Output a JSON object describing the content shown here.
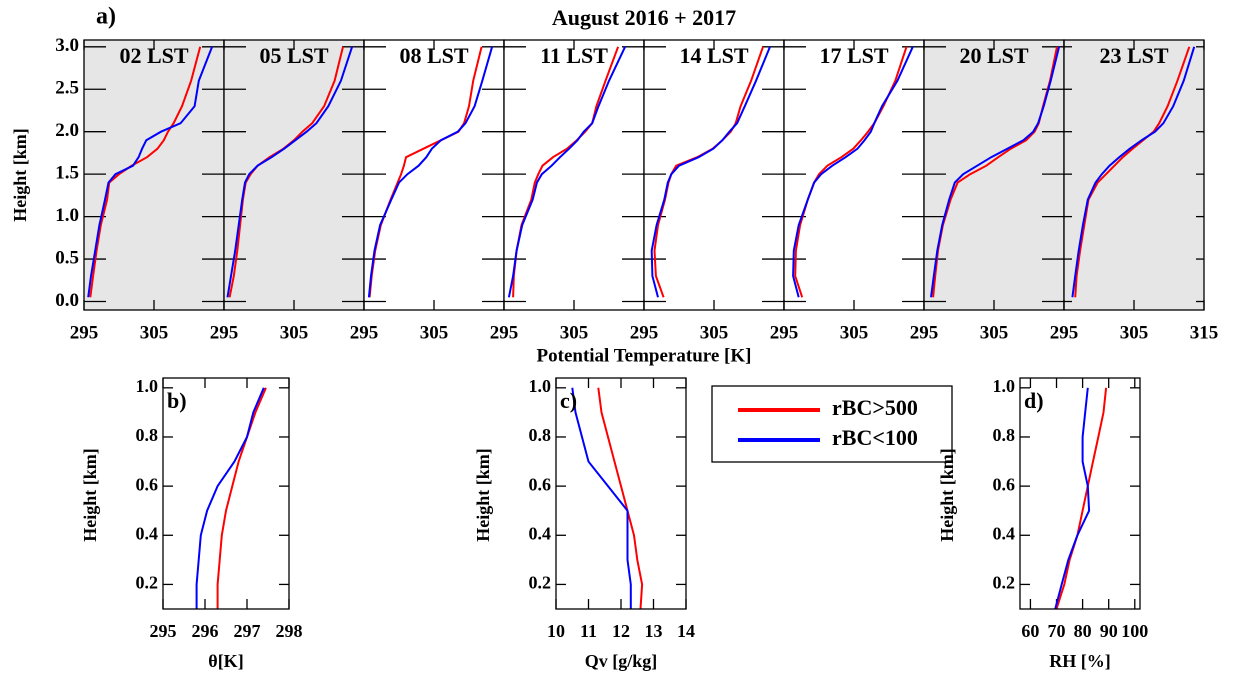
{
  "legend": [
    {
      "name": "rBC>500",
      "color": "#ff0000"
    },
    {
      "name": "rBC<100",
      "color": "#0000ff"
    }
  ],
  "chart_data": [
    {
      "type": "line",
      "label": "a)",
      "title": "August 2016 + 2017",
      "xlabel": "Potential Temperature [K]",
      "ylabel": "Height [km]",
      "ylim": [
        -0.1,
        3.08
      ],
      "yticks": [
        {
          "value": 0,
          "label": "0.0"
        },
        0.5,
        {
          "value": 1,
          "label": "1.0"
        },
        1.5,
        {
          "value": 2,
          "label": "2.0"
        },
        2.5,
        {
          "value": 3,
          "label": "3.0"
        }
      ],
      "heights": [
        0.05,
        0.3,
        0.6,
        0.9,
        1.2,
        1.4,
        1.5,
        1.6,
        1.7,
        1.8,
        1.9,
        2.0,
        2.1,
        2.3,
        2.6,
        3.0
      ],
      "panels": [
        {
          "title": "02 LST",
          "shaded": true,
          "xlim": [
            295,
            315
          ],
          "xticks": [
            295,
            305
          ],
          "series": [
            {
              "values": [
                295.9,
                296.3,
                296.8,
                297.4,
                298.3,
                298.6,
                300.0,
                301.8,
                304.0,
                305.5,
                306.4,
                307.0,
                307.8,
                309.0,
                310.3,
                311.6
              ]
            },
            {
              "values": [
                295.6,
                296.0,
                296.6,
                297.2,
                298.0,
                298.5,
                299.5,
                302.0,
                302.8,
                303.3,
                303.9,
                306.0,
                308.8,
                310.8,
                311.4,
                313.3
              ]
            }
          ]
        },
        {
          "title": "05 LST",
          "shaded": true,
          "xlim": [
            295,
            315
          ],
          "xticks": [
            295,
            305
          ],
          "series": [
            {
              "values": [
                295.8,
                296.4,
                296.9,
                297.3,
                297.7,
                298.1,
                298.8,
                299.8,
                301.5,
                303.5,
                305.0,
                306.2,
                307.6,
                309.3,
                310.8,
                312.0
              ]
            },
            {
              "values": [
                295.5,
                296.0,
                296.6,
                297.1,
                297.6,
                298.0,
                298.6,
                299.8,
                301.8,
                303.6,
                305.2,
                306.8,
                308.2,
                309.9,
                311.7,
                313.3
              ]
            }
          ]
        },
        {
          "title": "08 LST",
          "shaded": false,
          "xlim": [
            295,
            315
          ],
          "xticks": [
            295,
            305
          ],
          "series": [
            {
              "values": [
                295.8,
                296.1,
                296.6,
                297.4,
                298.8,
                299.8,
                300.3,
                300.7,
                301.0,
                303.5,
                306.0,
                308.5,
                309.3,
                310.0,
                310.6,
                311.8
              ]
            },
            {
              "values": [
                295.7,
                296.0,
                296.5,
                297.3,
                298.9,
                300.0,
                301.2,
                302.8,
                303.9,
                304.7,
                306.0,
                308.4,
                309.5,
                310.8,
                311.9,
                313.3
              ]
            }
          ]
        },
        {
          "title": "11 LST",
          "shaded": false,
          "xlim": [
            295,
            315
          ],
          "xticks": [
            295,
            305
          ],
          "series": [
            {
              "values": [
                296.3,
                296.4,
                296.8,
                297.5,
                298.9,
                299.4,
                299.9,
                300.5,
                302.0,
                304.0,
                305.4,
                306.6,
                307.6,
                308.2,
                309.5,
                311.3
              ]
            },
            {
              "values": [
                295.7,
                296.3,
                296.8,
                297.6,
                299.1,
                299.7,
                300.4,
                301.8,
                303.0,
                304.3,
                305.5,
                306.4,
                307.6,
                308.5,
                310.0,
                312.3
              ]
            }
          ]
        },
        {
          "title": "14 LST",
          "shaded": false,
          "xlim": [
            295,
            315
          ],
          "xticks": [
            295,
            305
          ],
          "series": [
            {
              "values": [
                297.8,
                296.7,
                296.5,
                297.0,
                298.0,
                298.5,
                298.9,
                299.6,
                302.6,
                304.8,
                306.2,
                307.4,
                308.1,
                308.8,
                310.3,
                312.0
              ]
            },
            {
              "values": [
                297.0,
                296.2,
                296.1,
                296.8,
                297.9,
                298.4,
                298.9,
                300.0,
                302.8,
                304.9,
                306.2,
                307.2,
                308.3,
                309.4,
                311.0,
                313.0
              ]
            }
          ]
        },
        {
          "title": "17 LST",
          "shaded": false,
          "xlim": [
            295,
            315
          ],
          "xticks": [
            295,
            305
          ],
          "series": [
            {
              "values": [
                297.6,
                296.6,
                296.7,
                297.3,
                298.4,
                299.3,
                300.0,
                301.2,
                303.2,
                304.9,
                306.0,
                307.0,
                307.9,
                309.2,
                310.9,
                312.5
              ]
            },
            {
              "values": [
                297.1,
                296.3,
                296.4,
                297.1,
                298.4,
                299.3,
                300.3,
                301.9,
                303.8,
                305.5,
                306.5,
                307.4,
                307.9,
                309.0,
                311.2,
                313.4
              ]
            }
          ]
        },
        {
          "title": "20 LST",
          "shaded": true,
          "xlim": [
            295,
            315
          ],
          "xticks": [
            295,
            305
          ],
          "series": [
            {
              "values": [
                296.3,
                296.6,
                297.0,
                297.7,
                298.8,
                299.8,
                301.6,
                303.9,
                305.6,
                307.4,
                309.6,
                310.8,
                311.4,
                312.0,
                313.0,
                314.0
              ]
            },
            {
              "values": [
                296.0,
                296.4,
                296.9,
                297.6,
                298.6,
                299.4,
                300.6,
                302.6,
                304.6,
                306.9,
                309.2,
                310.6,
                311.3,
                312.1,
                313.1,
                314.3
              ]
            }
          ]
        },
        {
          "title": "23 LST",
          "shaded": true,
          "xlim": [
            295,
            315
          ],
          "xticks": [
            295,
            305,
            315
          ],
          "series": [
            {
              "values": [
                296.6,
                296.8,
                297.3,
                297.9,
                298.5,
                299.8,
                301.0,
                302.2,
                303.4,
                304.8,
                306.3,
                307.8,
                308.6,
                309.8,
                311.2,
                312.9
              ]
            },
            {
              "values": [
                296.2,
                296.6,
                297.1,
                297.7,
                298.4,
                299.5,
                300.4,
                301.5,
                302.9,
                304.4,
                306.1,
                308.0,
                309.2,
                310.6,
                312.1,
                313.6
              ]
            }
          ]
        }
      ]
    },
    {
      "type": "line",
      "label": "b)",
      "xlabel": "θ[K]",
      "ylabel": "Height [km]",
      "xlim": [
        295,
        298
      ],
      "xticks": [
        295,
        296,
        297,
        298
      ],
      "ylim": [
        0.1,
        1.04
      ],
      "yticks": [
        0.2,
        0.4,
        0.6,
        0.8,
        {
          "value": 1,
          "label": "1.0"
        }
      ],
      "heights": [
        0.1,
        0.2,
        0.3,
        0.4,
        0.5,
        0.6,
        0.7,
        0.8,
        0.9,
        1.0
      ],
      "series": [
        {
          "values": [
            296.3,
            296.3,
            296.35,
            296.4,
            296.5,
            296.65,
            296.8,
            297.0,
            297.2,
            297.45
          ]
        },
        {
          "values": [
            295.8,
            295.8,
            295.85,
            295.9,
            296.05,
            296.3,
            296.7,
            297.0,
            297.15,
            297.4
          ]
        }
      ]
    },
    {
      "type": "line",
      "label": "c)",
      "xlabel": "Qv [g/kg]",
      "ylabel": "Height [km]",
      "xlim": [
        10,
        14
      ],
      "xticks": [
        10,
        11,
        12,
        13,
        14
      ],
      "ylim": [
        0.1,
        1.04
      ],
      "yticks": [
        0.2,
        0.4,
        0.6,
        0.8,
        {
          "value": 1,
          "label": "1.0"
        }
      ],
      "heights": [
        0.1,
        0.2,
        0.3,
        0.4,
        0.5,
        0.6,
        0.7,
        0.8,
        0.9,
        1.0
      ],
      "series": [
        {
          "values": [
            12.6,
            12.65,
            12.5,
            12.4,
            12.2,
            12.0,
            11.8,
            11.6,
            11.4,
            11.3
          ]
        },
        {
          "values": [
            12.3,
            12.3,
            12.2,
            12.2,
            12.2,
            11.6,
            11.0,
            10.8,
            10.6,
            10.5
          ]
        }
      ]
    },
    {
      "type": "line",
      "label": "d)",
      "xlabel": "RH [%]",
      "ylabel": "Height [km]",
      "xlim": [
        56,
        102
      ],
      "xticks": [
        60,
        70,
        80,
        90,
        100
      ],
      "ylim": [
        0.1,
        1.04
      ],
      "yticks": [
        0.2,
        0.4,
        0.6,
        0.8,
        {
          "value": 1,
          "label": "1.0"
        }
      ],
      "heights": [
        0.1,
        0.2,
        0.3,
        0.4,
        0.5,
        0.6,
        0.7,
        0.8,
        0.9,
        1.0
      ],
      "series": [
        {
          "values": [
            70,
            73,
            75,
            78,
            80,
            82,
            84,
            86,
            88,
            89
          ]
        },
        {
          "values": [
            69.5,
            72,
            74.5,
            78,
            82.5,
            82,
            80,
            80,
            81,
            82
          ]
        }
      ]
    }
  ]
}
